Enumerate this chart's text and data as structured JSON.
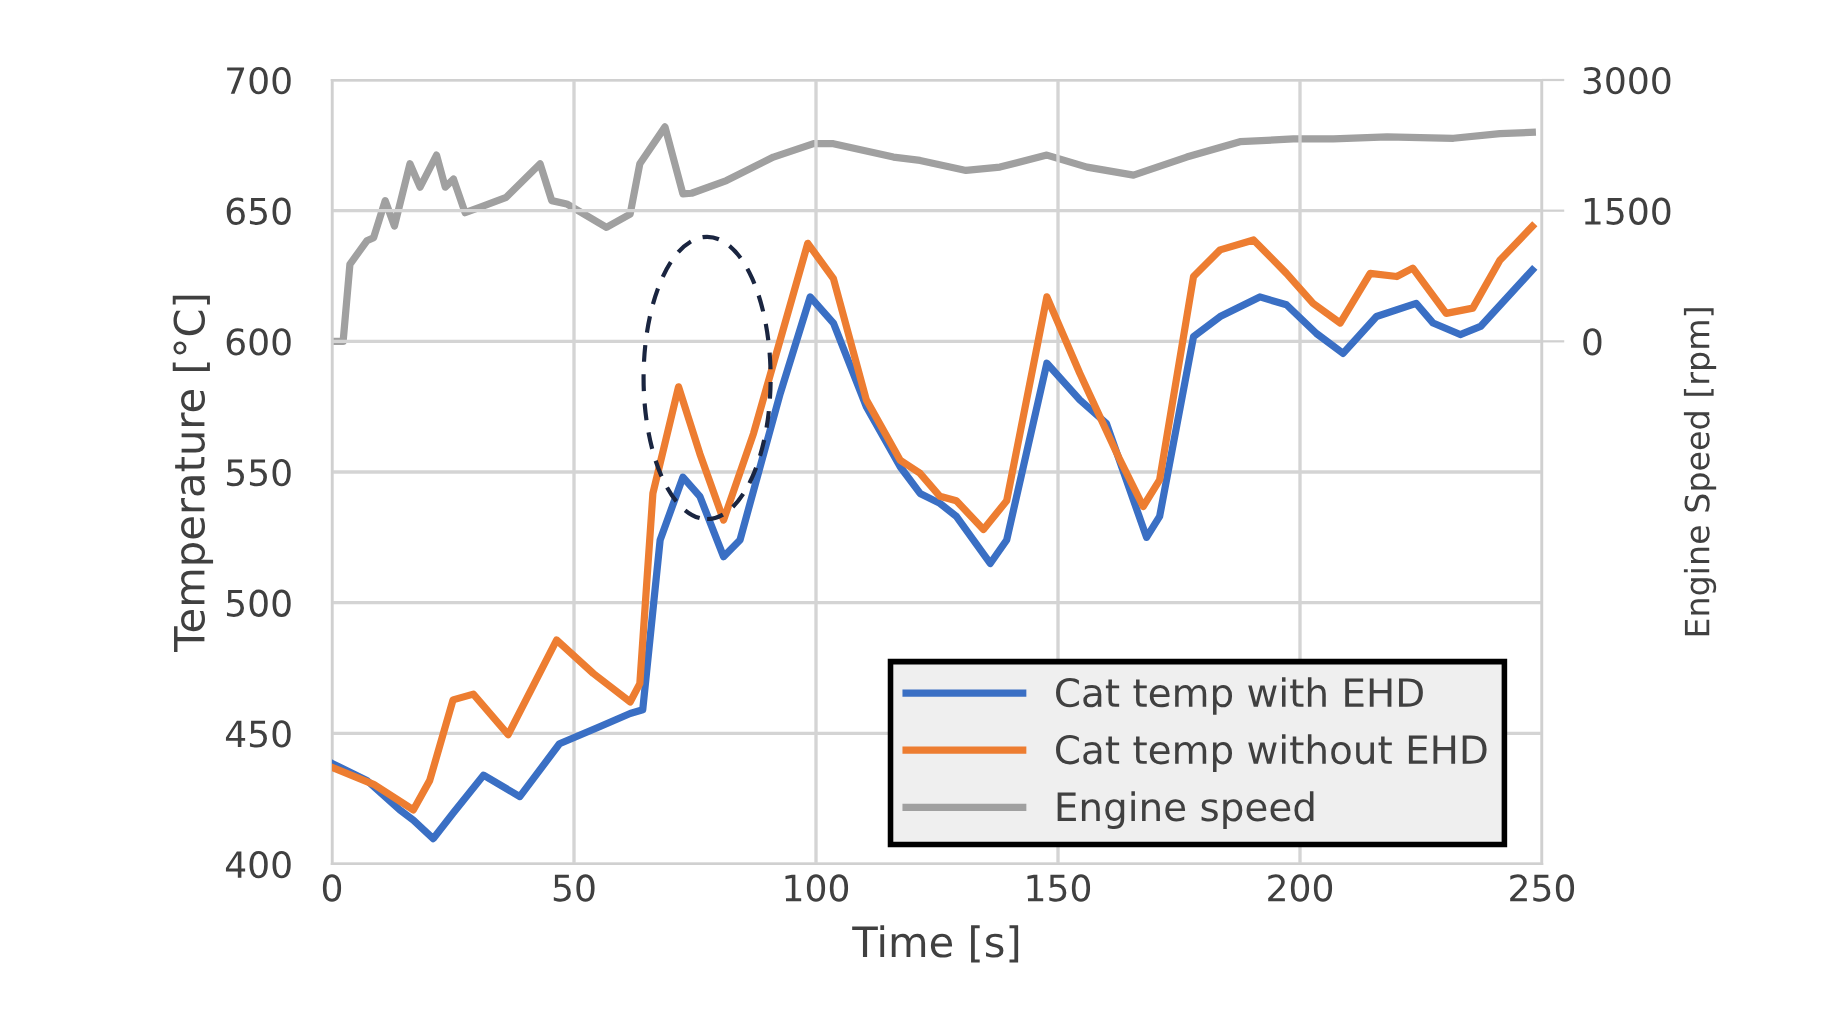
{
  "chart_data": {
    "type": "line",
    "xlabel": "Time [s]",
    "ylabel": "Temperature [°C]",
    "y2label": "Engine Speed [rpm]",
    "xlim": [
      0,
      250
    ],
    "xticks": [
      0,
      50,
      100,
      150,
      200,
      250
    ],
    "ylim": [
      400,
      700
    ],
    "yticks": [
      400,
      450,
      500,
      550,
      600,
      650,
      700
    ],
    "y2lim": [
      -6000,
      3000
    ],
    "y2ticks": [
      0,
      1500,
      3000
    ],
    "grid": true,
    "legend": "bottom right",
    "marker": "none",
    "line_style": "solid",
    "series": [
      {
        "name": "Cat temp with EHD",
        "color": "#3a6fc4",
        "x": [
          0,
          7.2,
          14,
          16.8,
          20.9,
          25,
          31.3,
          38.8,
          47,
          55.4,
          61.6,
          64.2,
          67.8,
          72.5,
          76,
          80.9,
          84.3,
          92.6,
          98.8,
          103.6,
          110.4,
          117.4,
          121.5,
          125.6,
          129,
          136,
          139.4,
          147.7,
          154.5,
          160,
          168.3,
          171,
          178,
          183.5,
          191.7,
          197.2,
          203.4,
          208.9,
          215.8,
          224,
          227.5,
          233.1,
          237.3,
          248
        ],
        "values": [
          438.5,
          432,
          420.7,
          416.8,
          409.7,
          419.4,
          434,
          425.8,
          446,
          452.6,
          457.6,
          459,
          524,
          548,
          540.7,
          517.6,
          524,
          580,
          617,
          607,
          575,
          552,
          541.8,
          538,
          533,
          515,
          524,
          591.6,
          577.6,
          568.6,
          525,
          533,
          601.8,
          609.5,
          617,
          614,
          603,
          595.4,
          609.5,
          614.5,
          607,
          602.6,
          605.7,
          627.3
        ]
      },
      {
        "name": "Cat temp without EHD",
        "color": "#ed7d31",
        "x": [
          0,
          8.6,
          16.8,
          20.2,
          25,
          29.2,
          36.4,
          46.4,
          54,
          61.6,
          63.6,
          66.3,
          71.6,
          76,
          80.9,
          87.1,
          98.3,
          103.6,
          110.4,
          117.4,
          121.5,
          125.6,
          129,
          134.6,
          139.4,
          147.7,
          154.5,
          162.8,
          167.6,
          171,
          178,
          183.5,
          190.4,
          197.2,
          202.7,
          208.3,
          214.5,
          220,
          223.3,
          230.2,
          235.7,
          241.3,
          248
        ],
        "values": [
          437,
          430.5,
          420.7,
          432,
          462.8,
          465,
          449.5,
          485.7,
          472.9,
          462,
          469,
          541.8,
          582.6,
          557,
          531.6,
          564.8,
          637.5,
          624,
          577.6,
          554.5,
          549.5,
          540.7,
          539,
          528,
          539,
          617,
          587.8,
          554.6,
          536.8,
          547,
          624.8,
          635,
          638.8,
          626,
          614.5,
          607,
          626,
          624.8,
          628,
          610.7,
          612.7,
          631,
          644
        ]
      },
      {
        "name": "Engine speed",
        "color": "#a0a0a0",
        "axis": "y2",
        "x": [
          0,
          2.3,
          3.7,
          7.2,
          8.6,
          11,
          12.9,
          16.1,
          18.2,
          21.6,
          23.4,
          25.1,
          27.5,
          30.5,
          36,
          43,
          45.4,
          48.5,
          56.7,
          61.6,
          63.6,
          68.8,
          72.5,
          74.3,
          81.5,
          91.2,
          99.5,
          103.6,
          116,
          121.5,
          131,
          138,
          147.7,
          156,
          165.6,
          176.6,
          187.6,
          198.6,
          206.9,
          218,
          231.7,
          241.3,
          248
        ],
        "values": [
          0,
          0,
          884,
          1154,
          1190,
          1615,
          1323,
          2038,
          1770,
          2138,
          1770,
          1862,
          1477,
          1538,
          1654,
          2038,
          1615,
          1577,
          1308,
          1460,
          2038,
          2462,
          1692,
          1700,
          1846,
          2115,
          2269,
          2269,
          2115,
          2077,
          1962,
          2000,
          2138,
          2000,
          1908,
          2115,
          2292,
          2323,
          2323,
          2346,
          2331,
          2385,
          2400
        ]
      }
    ]
  }
}
